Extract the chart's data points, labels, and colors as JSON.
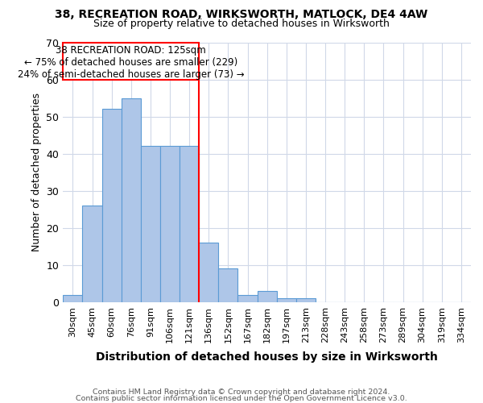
{
  "title1": "38, RECREATION ROAD, WIRKSWORTH, MATLOCK, DE4 4AW",
  "title2": "Size of property relative to detached houses in Wirksworth",
  "xlabel": "Distribution of detached houses by size in Wirksworth",
  "ylabel": "Number of detached properties",
  "categories": [
    "30sqm",
    "45sqm",
    "60sqm",
    "76sqm",
    "91sqm",
    "106sqm",
    "121sqm",
    "136sqm",
    "152sqm",
    "167sqm",
    "182sqm",
    "197sqm",
    "213sqm",
    "228sqm",
    "243sqm",
    "258sqm",
    "273sqm",
    "289sqm",
    "304sqm",
    "319sqm",
    "334sqm"
  ],
  "values": [
    2,
    26,
    52,
    55,
    42,
    42,
    42,
    16,
    9,
    2,
    3,
    1,
    1,
    0,
    0,
    0,
    0,
    0,
    0,
    0,
    0
  ],
  "bar_color": "#aec6e8",
  "bar_edge_color": "#5b9bd5",
  "red_line_index": 6.5,
  "annotation_line1": "38 RECREATION ROAD: 125sqm",
  "annotation_line2": "← 75% of detached houses are smaller (229)",
  "annotation_line3": "24% of semi-detached houses are larger (73) →",
  "ylim": [
    0,
    70
  ],
  "yticks": [
    0,
    10,
    20,
    30,
    40,
    50,
    60,
    70
  ],
  "footer1": "Contains HM Land Registry data © Crown copyright and database right 2024.",
  "footer2": "Contains public sector information licensed under the Open Government Licence v3.0.",
  "background_color": "#ffffff",
  "grid_color": "#d0d8e8"
}
